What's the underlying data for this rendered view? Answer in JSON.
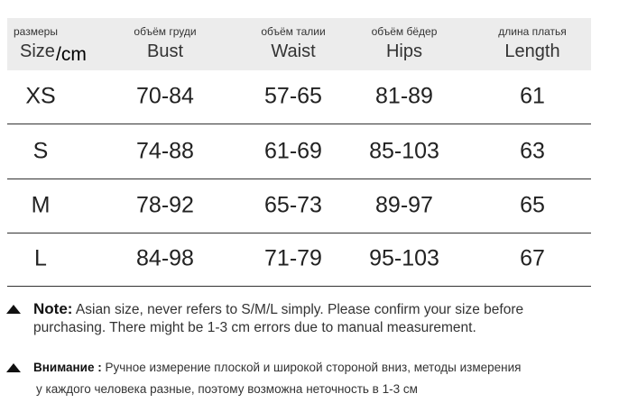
{
  "header": {
    "columns": [
      {
        "ru": "размеры",
        "en": "Size",
        "unit": "/cm"
      },
      {
        "ru": "объём груди",
        "en": "Bust"
      },
      {
        "ru": "объём талии",
        "en": "Waist"
      },
      {
        "ru": "объём бёдер",
        "en": "Hips"
      },
      {
        "ru": "длина платья",
        "en": "Length"
      }
    ]
  },
  "table": {
    "rows": [
      [
        "XS",
        "70-84",
        "57-65",
        "81-89",
        "61"
      ],
      [
        "S",
        "74-88",
        "61-69",
        "85-103",
        "63"
      ],
      [
        "M",
        "78-92",
        "65-73",
        "89-97",
        "65"
      ],
      [
        "L",
        "84-98",
        "71-79",
        "95-103",
        "67"
      ]
    ]
  },
  "notes": [
    {
      "label": "Note:",
      "lines": [
        "Asian size, never refers to S/M/L simply. Please confirm your size before",
        "purchasing. There might be 1-3 cm errors due to manual measurement."
      ]
    },
    {
      "label": "Внимание :",
      "lines": [
        "Ручное измерение плоской и широкой стороной вниз, методы измерения",
        "у каждого человека разные, поэтому возможна неточность в 1-3 см"
      ]
    }
  ]
}
